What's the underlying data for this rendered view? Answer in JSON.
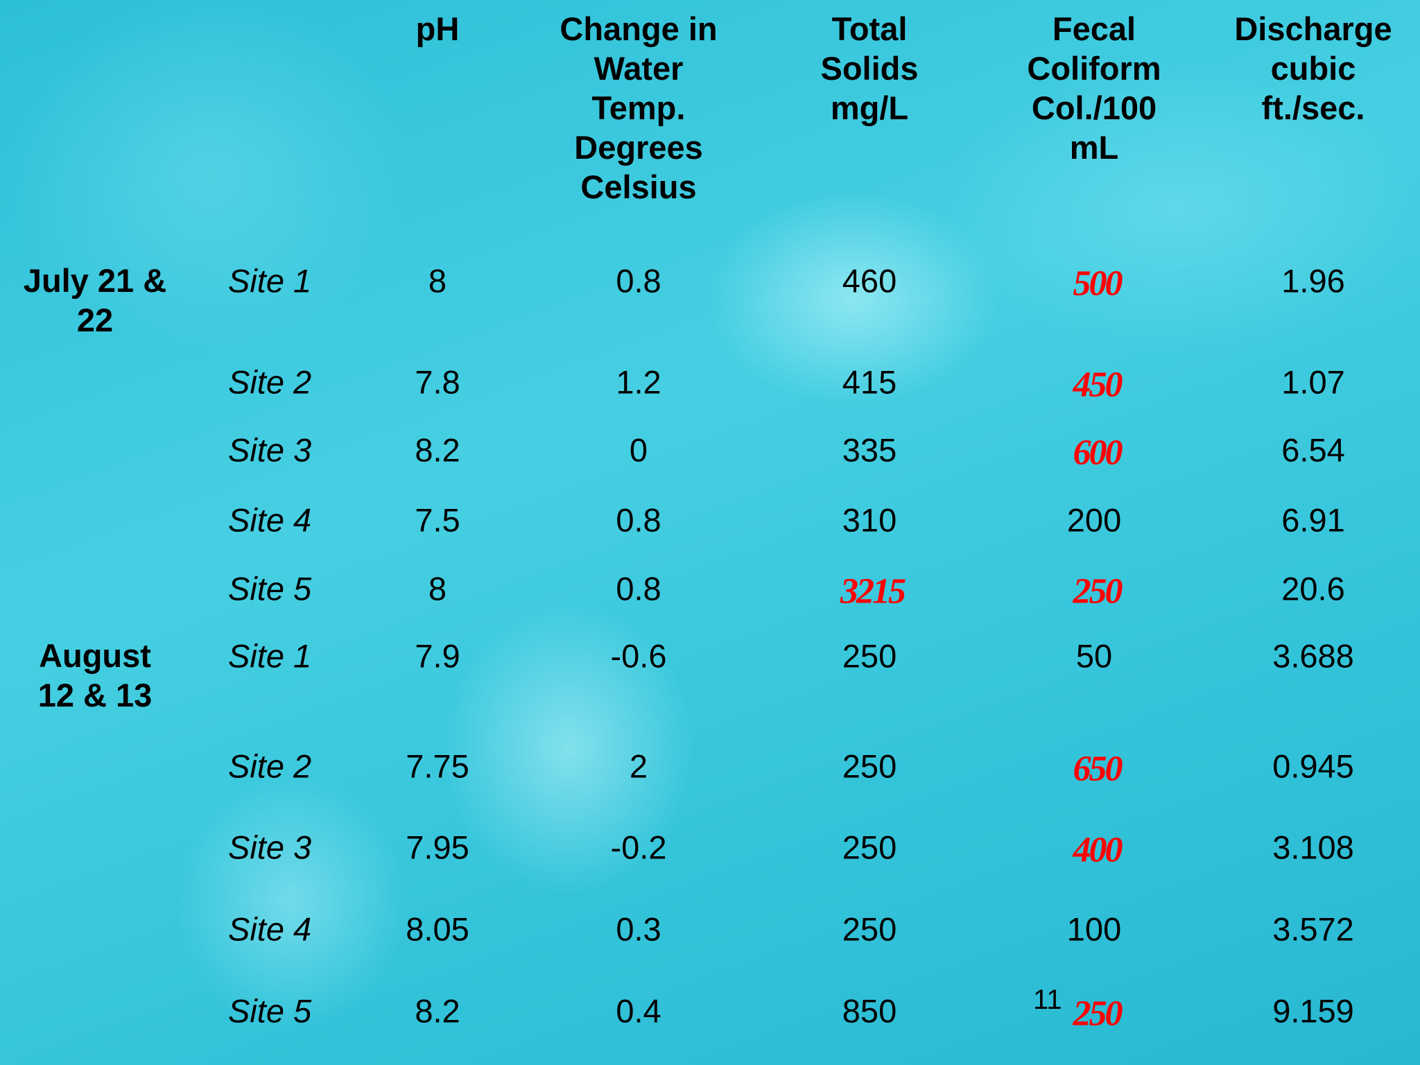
{
  "table": {
    "headers": [
      "pH",
      "Change in\nWater\nTemp.\nDegrees\nCelsius",
      "Total\nSolids\nmg/L",
      "Fecal\nColiform\nCol./100\nmL",
      "Discharge\ncubic\nft./sec."
    ],
    "highlight_color": "#ff0000",
    "groups": [
      {
        "label": "July 21 &\n22",
        "rows": [
          {
            "site": "Site 1",
            "values": [
              "8",
              "0.8",
              "460",
              "500",
              "1.96"
            ],
            "highlighted": [
              3
            ]
          },
          {
            "site": "Site 2",
            "values": [
              "7.8",
              "1.2",
              "415",
              "450",
              "1.07"
            ],
            "highlighted": [
              3
            ]
          },
          {
            "site": "Site 3",
            "values": [
              "8.2",
              "0",
              "335",
              "600",
              "6.54"
            ],
            "highlighted": [
              3
            ]
          },
          {
            "site": "Site 4",
            "values": [
              "7.5",
              "0.8",
              "310",
              "200",
              "6.91"
            ],
            "highlighted": []
          },
          {
            "site": "Site 5",
            "values": [
              "8",
              "0.8",
              "3215",
              "250",
              "20.6"
            ],
            "highlighted": [
              2,
              3
            ]
          }
        ]
      },
      {
        "label": "August\n12 & 13",
        "rows": [
          {
            "site": "Site 1",
            "values": [
              "7.9",
              "-0.6",
              "250",
              "50",
              "3.688"
            ],
            "highlighted": []
          },
          {
            "site": "Site 2",
            "values": [
              "7.75",
              "2",
              "250",
              "650",
              "0.945"
            ],
            "highlighted": [
              3
            ]
          },
          {
            "site": "Site 3",
            "values": [
              "7.95",
              "-0.2",
              "250",
              "400",
              "3.108"
            ],
            "highlighted": [
              3
            ]
          },
          {
            "site": "Site 4",
            "values": [
              "8.05",
              "0.3",
              "250",
              "100",
              "3.572"
            ],
            "highlighted": []
          },
          {
            "site": "Site 5",
            "values": [
              "8.2",
              "0.4",
              "850",
              "250",
              "9.159"
            ],
            "highlighted": [
              3
            ]
          }
        ]
      }
    ]
  },
  "slide_number": "11"
}
